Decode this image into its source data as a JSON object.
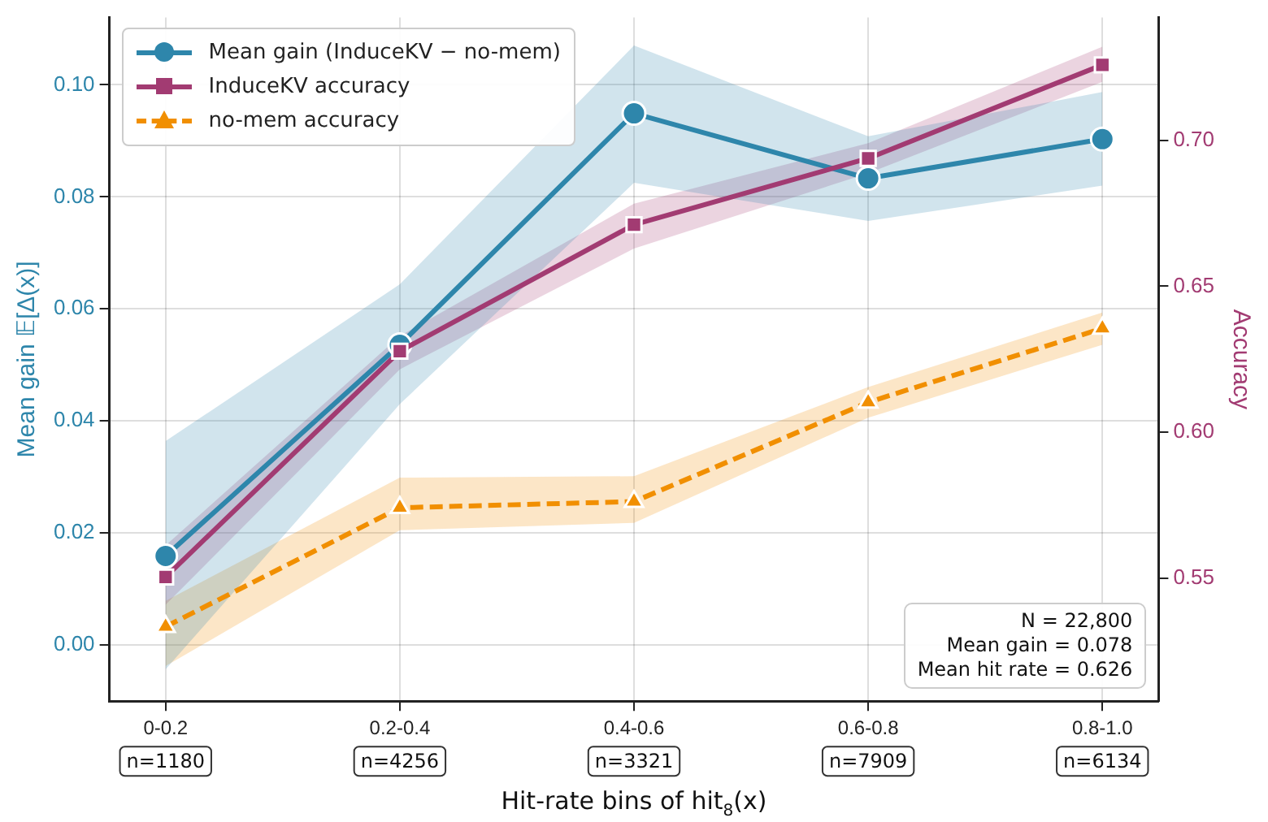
{
  "chart_data": {
    "type": "line",
    "xlabel": "Hit-rate bins of hit$_{8}$(x)",
    "ylabel": "Mean gain 𝔼[Δ(x)]",
    "y2label": "Accuracy",
    "categories": [
      "0-0.2",
      "0.2-0.4",
      "0.4-0.6",
      "0.6-0.8",
      "0.8-1.0"
    ],
    "series": [
      {
        "name": "Mean gain (InduceKV − no-mem)",
        "color": "#2e86ab",
        "marker": "circle",
        "line_style": "solid",
        "values": [
          0.0159,
          0.0536,
          0.0949,
          0.0833,
          0.0903
        ],
        "lower": [
          -0.0043,
          0.043,
          0.0825,
          0.0757,
          0.082
        ],
        "upper": [
          0.0364,
          0.0644,
          0.107,
          0.0908,
          0.0987
        ]
      },
      {
        "name": "InduceKV accuracy",
        "color": "#a23b72",
        "marker": "square",
        "line_style": "solid",
        "axis": "y2",
        "values": [
          0.5505,
          0.6278,
          0.6711,
          0.6938,
          0.7258
        ],
        "lower": [
          0.541,
          0.6216,
          0.6629,
          0.6887,
          0.72
        ],
        "upper": [
          0.5613,
          0.633,
          0.6783,
          0.699,
          0.732
        ]
      },
      {
        "name": "no-mem accuracy",
        "color": "#f18f01",
        "marker": "triangle",
        "line_style": "dashed",
        "axis": "y2",
        "values": [
          0.5335,
          0.5742,
          0.5763,
          0.6103,
          0.6356
        ],
        "lower": [
          0.52,
          0.5665,
          0.569,
          0.605,
          0.63
        ],
        "upper": [
          0.5423,
          0.5845,
          0.585,
          0.6155,
          0.641
        ]
      }
    ],
    "ylim": [
      -0.01,
      0.112
    ],
    "yticks": [
      {
        "value": 0,
        "label": "0.00"
      },
      {
        "value": 0.02,
        "label": "0.02"
      },
      {
        "value": 0.04,
        "label": "0.04"
      },
      {
        "value": 0.06,
        "label": "0.06"
      },
      {
        "value": 0.08,
        "label": "0.08"
      },
      {
        "value": 0.1,
        "label": "0.10"
      }
    ],
    "y2lim": [
      0.508,
      0.742
    ],
    "y2ticks": [
      0.55,
      {
        "value": 0.6,
        "label": "0.60"
      },
      0.65,
      {
        "value": 0.7,
        "label": "0.70"
      }
    ],
    "grid": true,
    "legend": "top left",
    "annotations": [
      "n=1180",
      "n=4256",
      "n=3321",
      "n=7909",
      "n=6134",
      "N = 22,800",
      "Mean gain = 0.078",
      "Mean hit rate = 0.626"
    ]
  }
}
